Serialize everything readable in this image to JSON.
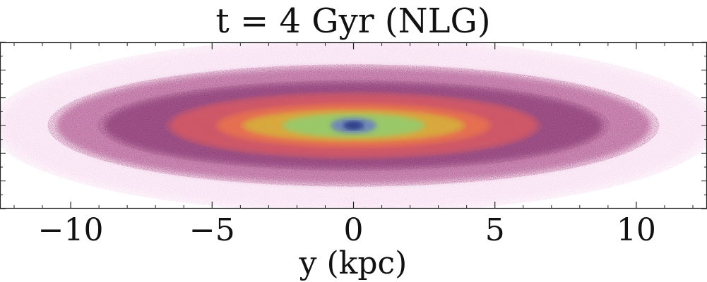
{
  "chart_data": {
    "type": "heatmap",
    "title": "t = 4 Gyr (NLG)",
    "xlabel": "y (kpc)",
    "ylabel": "",
    "xlim": [
      -12.5,
      12.5
    ],
    "ylim": [
      -3,
      3
    ],
    "xticks": [
      {
        "value": -10,
        "label": "−10"
      },
      {
        "value": -5,
        "label": "−5"
      },
      {
        "value": 0,
        "label": "0"
      },
      {
        "value": 5,
        "label": "5"
      },
      {
        "value": 10,
        "label": "10"
      }
    ],
    "x_minor_step": 1,
    "y_major_step": 1,
    "y_minor_step": 0.5,
    "y_tick_labels_shown": false,
    "grid": false,
    "density_map": {
      "description_units": "projected stellar density, colored from low to high",
      "center": [
        0,
        0
      ],
      "outer_disk_half_length": 12.5,
      "outer_disk_half_height": 3.0,
      "contours": [
        {
          "level": "lowest",
          "color": "#f3c7e8",
          "half_length": 12.5,
          "half_height": 3.0
        },
        {
          "level": "low",
          "color": "#a94c86",
          "half_length": 10.5,
          "half_height": 2.1
        },
        {
          "level": "low-mid",
          "color": "#7f2f6a",
          "half_length": 8.8,
          "half_height": 1.55
        },
        {
          "level": "mid",
          "color": "#d85a63",
          "half_length": 6.5,
          "half_height": 1.15
        },
        {
          "level": "mid-high",
          "color": "#e9744d",
          "half_length": 4.8,
          "half_height": 0.78
        },
        {
          "level": "high",
          "color": "#d6b43a",
          "half_length": 3.9,
          "half_height": 0.56
        },
        {
          "level": "higher",
          "color": "#8fcf72",
          "half_length": 2.5,
          "half_height": 0.42
        },
        {
          "level": "core",
          "color": "#6678c9",
          "half_length": 0.8,
          "half_height": 0.27
        },
        {
          "level": "peak",
          "color": "#1f2b7a",
          "half_length": 0.35,
          "half_height": 0.14
        }
      ]
    }
  }
}
